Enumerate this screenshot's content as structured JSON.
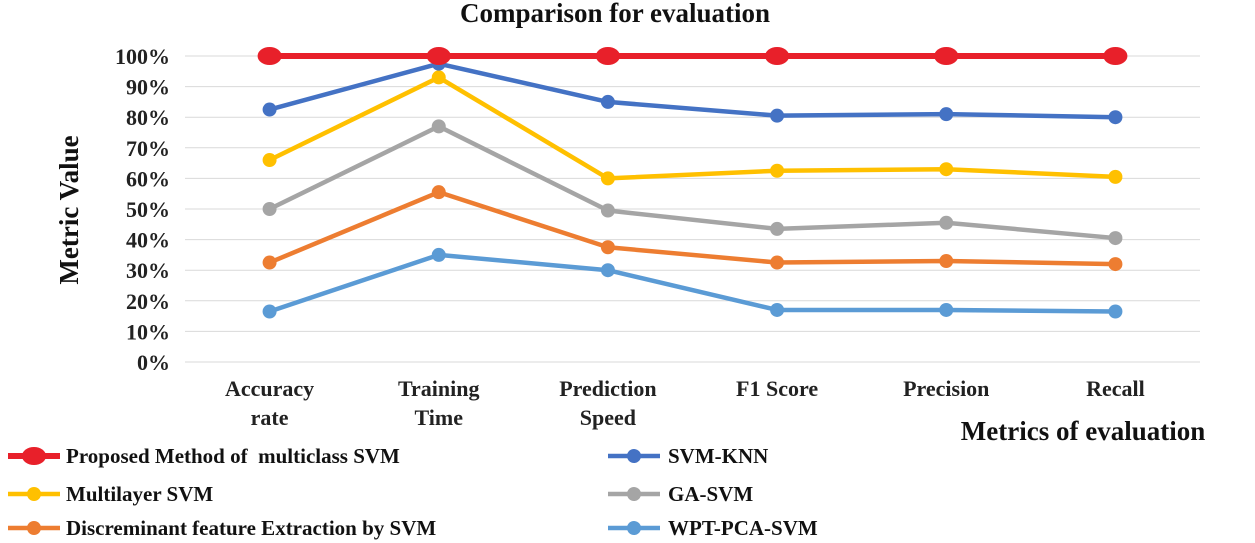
{
  "chart_data": {
    "type": "line",
    "title": "Comparison for evaluation",
    "xlabel": "Metrics of evaluation",
    "ylabel": "Metric Value",
    "ylim": [
      0,
      100
    ],
    "yticks": [
      "0%",
      "10%",
      "20%",
      "30%",
      "40%",
      "50%",
      "60%",
      "70%",
      "80%",
      "90%",
      "100%"
    ],
    "categories": [
      [
        "Accuracy",
        "rate"
      ],
      [
        "Training",
        "Time"
      ],
      [
        "Prediction",
        "Speed"
      ],
      [
        "F1 Score"
      ],
      [
        "Precision"
      ],
      [
        "Recall"
      ]
    ],
    "series": [
      {
        "name": "Proposed Method of  multiclass SVM",
        "color": "#e8202a",
        "values": [
          100,
          100,
          100,
          100,
          100,
          100
        ]
      },
      {
        "name": "SVM-KNN",
        "color": "#4472c4",
        "values": [
          82.5,
          97.5,
          85,
          80.5,
          81,
          80
        ]
      },
      {
        "name": "Multilayer SVM",
        "color": "#ffc000",
        "values": [
          66,
          93,
          60,
          62.5,
          63,
          60.5
        ]
      },
      {
        "name": "GA-SVM",
        "color": "#a5a5a5",
        "values": [
          50,
          77,
          49.5,
          43.5,
          45.5,
          40.5
        ]
      },
      {
        "name": "Discreminant feature Extraction by SVM",
        "color": "#ed7d31",
        "values": [
          32.5,
          55.5,
          37.5,
          32.5,
          33,
          32
        ]
      },
      {
        "name": "WPT-PCA-SVM",
        "color": "#5b9bd5",
        "values": [
          16.5,
          35,
          30,
          17,
          17,
          16.5
        ]
      }
    ],
    "legend_position": "bottom"
  }
}
